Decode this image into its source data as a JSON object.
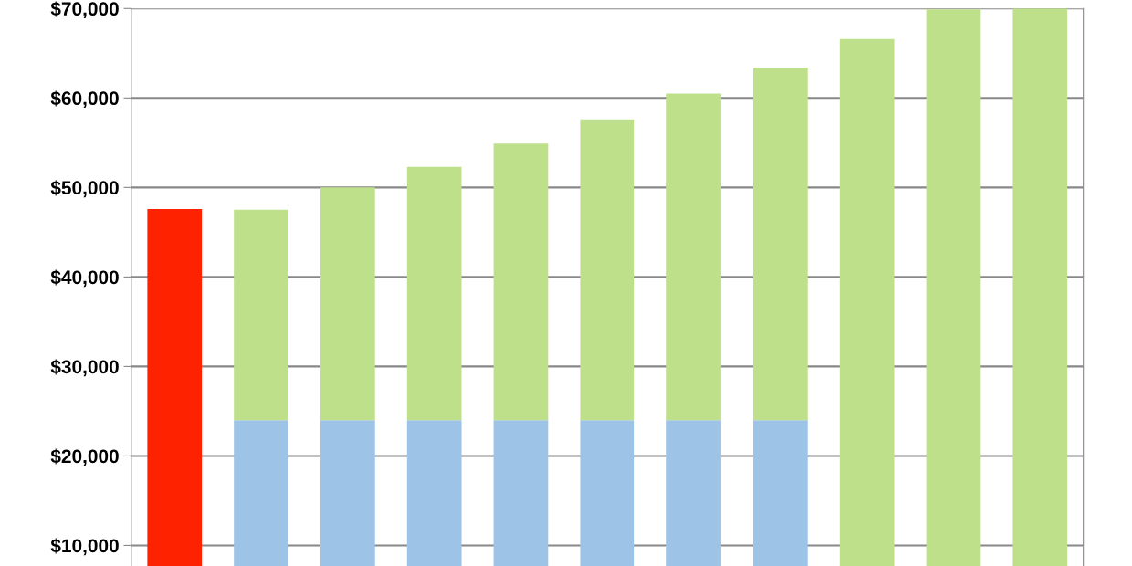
{
  "chart_data": {
    "type": "bar",
    "stacked": true,
    "categories": [
      null,
      null,
      null,
      null,
      null,
      null,
      null,
      null,
      null,
      null,
      null
    ],
    "series": [
      {
        "color": "#ff2200",
        "values": [
          47600,
          null,
          null,
          null,
          null,
          null,
          null,
          null,
          null,
          null,
          null
        ]
      },
      {
        "color": "#9dc3e6",
        "values": [
          null,
          24000,
          24000,
          24000,
          24000,
          24000,
          24000,
          24000,
          null,
          null,
          null
        ]
      },
      {
        "color": "#bfe08a",
        "values": [
          null,
          23500,
          26000,
          28300,
          30900,
          33600,
          36500,
          39400,
          66600,
          69900,
          70000
        ]
      }
    ],
    "ylim": [
      7700,
      70000
    ],
    "yticks": [
      {
        "value": 10000,
        "label": "$10,000"
      },
      {
        "value": 20000,
        "label": "$20,000"
      },
      {
        "value": 30000,
        "label": "$30,000"
      },
      {
        "value": 40000,
        "label": "$40,000"
      },
      {
        "value": 50000,
        "label": "$50,000"
      },
      {
        "value": 60000,
        "label": "$60,000"
      },
      {
        "value": 70000,
        "label": "$70,000"
      }
    ],
    "grid": "y",
    "tick_labels": "y"
  }
}
